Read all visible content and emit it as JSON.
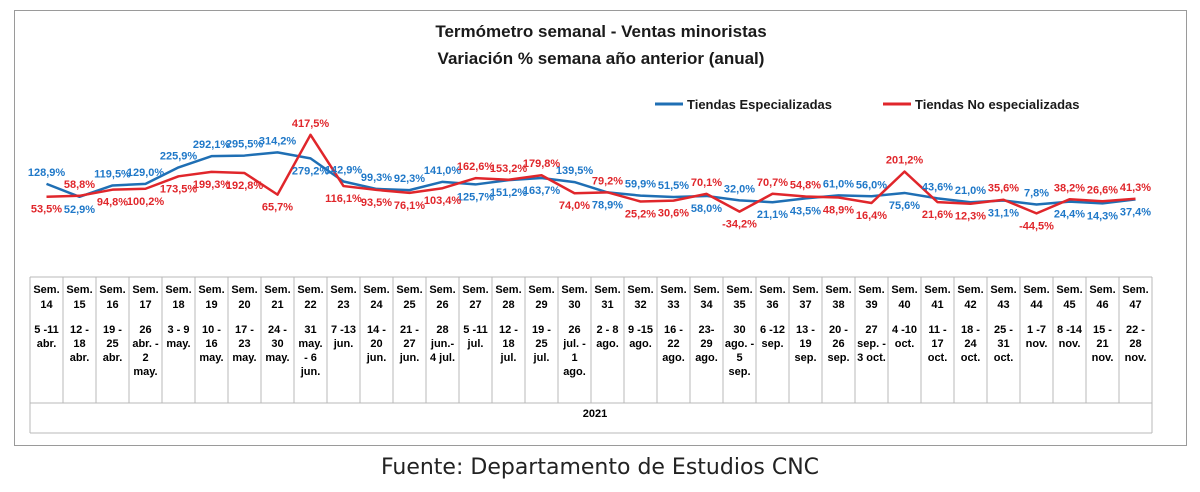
{
  "chart_data": {
    "type": "line",
    "title": "Termómetro semanal - Ventas minoristas",
    "subtitle": "Variación % semana año anterior (anual)",
    "x_group_label": "2021",
    "legend_position": "top-right",
    "categories": [
      {
        "week": "Sem.|14",
        "range": "5 -11|abr."
      },
      {
        "week": "Sem.|15",
        "range": "12 -|18|abr."
      },
      {
        "week": "Sem.|16",
        "range": "19 -|25|abr."
      },
      {
        "week": "Sem.|17",
        "range": "26|abr. -|2|may."
      },
      {
        "week": "Sem.|18",
        "range": "3 - 9|may."
      },
      {
        "week": "Sem.|19",
        "range": "10 -|16|may."
      },
      {
        "week": "Sem.|20",
        "range": "17 -|23|may."
      },
      {
        "week": "Sem.|21",
        "range": "24 -|30|may."
      },
      {
        "week": "Sem.|22",
        "range": "31|may.|- 6|jun."
      },
      {
        "week": "Sem.|23",
        "range": "7 -13|jun."
      },
      {
        "week": "Sem.|24",
        "range": "14 -|20|jun."
      },
      {
        "week": "Sem.|25",
        "range": "21 -|27|jun."
      },
      {
        "week": "Sem.|26",
        "range": "28|jun.-|4 jul."
      },
      {
        "week": "Sem.|27",
        "range": "5 -11|jul."
      },
      {
        "week": "Sem.|28",
        "range": "12 -|18|jul."
      },
      {
        "week": "Sem.|29",
        "range": "19 -|25|jul."
      },
      {
        "week": "Sem.|30",
        "range": "26|jul. -|1|ago."
      },
      {
        "week": "Sem.|31",
        "range": "2 - 8|ago."
      },
      {
        "week": "Sem.|32",
        "range": "9 -15|ago."
      },
      {
        "week": "Sem.|33",
        "range": "16 -|22|ago."
      },
      {
        "week": "Sem.|34",
        "range": "23-|29|ago."
      },
      {
        "week": "Sem.|35",
        "range": "30|ago. -|5|sep."
      },
      {
        "week": "Sem.|36",
        "range": "6 -12|sep."
      },
      {
        "week": "Sem.|37",
        "range": "13 -|19|sep."
      },
      {
        "week": "Sem.|38",
        "range": "20 -|26|sep."
      },
      {
        "week": "Sem.|39",
        "range": "27|sep. -|3 oct."
      },
      {
        "week": "Sem.|40",
        "range": "4 -10|oct."
      },
      {
        "week": "Sem.|41",
        "range": "11 -|17|oct."
      },
      {
        "week": "Sem.|42",
        "range": "18 -|24|oct."
      },
      {
        "week": "Sem.|43",
        "range": "25 -|31|oct."
      },
      {
        "week": "Sem.|44",
        "range": "1 -7|nov."
      },
      {
        "week": "Sem.|45",
        "range": "8 -14|nov."
      },
      {
        "week": "Sem.|46",
        "range": "15 -|21|nov."
      },
      {
        "week": "Sem.|47",
        "range": "22 -|28|nov."
      }
    ],
    "series": [
      {
        "name": "Tiendas Especializadas",
        "color": "#1f6fb4",
        "label_color": "#1f78c8",
        "values": [
          128.9,
          52.9,
          119.5,
          129.0,
          225.9,
          292.1,
          295.5,
          314.2,
          279.2,
          142.9,
          99.3,
          92.3,
          141.0,
          125.7,
          151.2,
          163.7,
          139.5,
          78.9,
          59.9,
          51.5,
          58.0,
          32.0,
          21.1,
          43.5,
          61.0,
          56.0,
          75.6,
          43.6,
          21.0,
          31.1,
          7.8,
          24.4,
          14.3,
          37.4
        ],
        "labels": [
          "128,9%",
          "52,9%",
          "119,5%",
          "129,0%",
          "225,9%",
          "292,1%",
          "295,5%",
          "314,2%",
          "279,2%",
          "142,9%",
          "99,3%",
          "92,3%",
          "141,0%",
          "125,7%",
          "151,2%",
          "163,7%",
          "139,5%",
          "78,9%",
          "59,9%",
          "51,5%",
          "58,0%",
          "32,0%",
          "21,1%",
          "43,5%",
          "61,0%",
          "56,0%",
          "75,6%",
          "43,6%",
          "21,0%",
          "31,1%",
          "7,8%",
          "24,4%",
          "14,3%",
          "37,4%"
        ]
      },
      {
        "name": "Tiendas No especializadas",
        "color": "#e0262b",
        "label_color": "#e0262b",
        "values": [
          53.5,
          58.8,
          94.8,
          100.2,
          173.5,
          199.3,
          192.8,
          65.7,
          417.5,
          116.1,
          93.5,
          76.1,
          103.4,
          162.6,
          153.2,
          179.8,
          74.0,
          79.2,
          25.2,
          30.6,
          70.1,
          -34.2,
          70.7,
          54.8,
          48.9,
          16.4,
          201.2,
          21.6,
          12.3,
          35.6,
          -44.5,
          38.2,
          26.6,
          41.3
        ],
        "labels": [
          "53,5%",
          "58,8%",
          "94,8%",
          "100,2%",
          "173,5%",
          "199,3%",
          "192,8%",
          "65,7%",
          "417,5%",
          "116,1%",
          "93,5%",
          "76,1%",
          "103,4%",
          "162,6%",
          "153,2%",
          "179,8%",
          "74,0%",
          "79,2%",
          "25,2%",
          "30,6%",
          "70,1%",
          "-34,2%",
          "70,7%",
          "54,8%",
          "48,9%",
          "16,4%",
          "201,2%",
          "21,6%",
          "12,3%",
          "35,6%",
          "-44,5%",
          "38,2%",
          "26,6%",
          "41,3%"
        ]
      }
    ],
    "ylim": [
      -60,
      440
    ],
    "grid": false
  },
  "source": "Fuente: Departamento de Estudios CNC"
}
